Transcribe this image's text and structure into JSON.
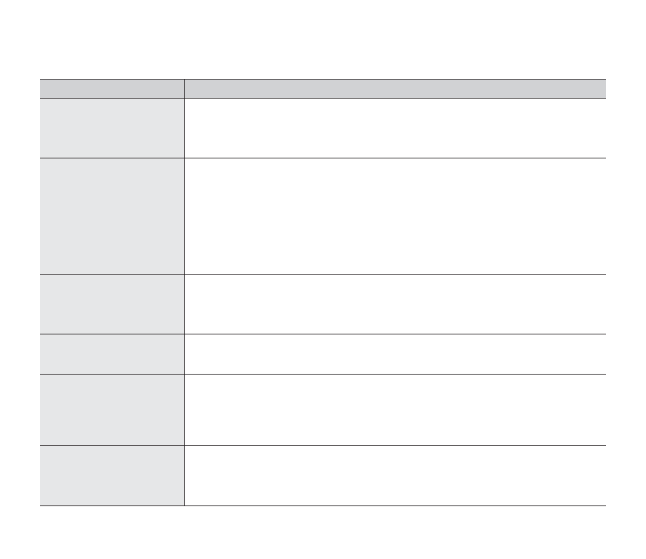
{
  "colors": {
    "header_bg": "#d1d2d4",
    "label_column_bg": "#e6e7e8",
    "border": "#231f20"
  },
  "table": {
    "header": [
      "",
      ""
    ],
    "rows": [
      [
        "",
        ""
      ],
      [
        "",
        ""
      ],
      [
        "",
        ""
      ],
      [
        "",
        ""
      ],
      [
        "",
        ""
      ],
      [
        "",
        ""
      ]
    ]
  }
}
